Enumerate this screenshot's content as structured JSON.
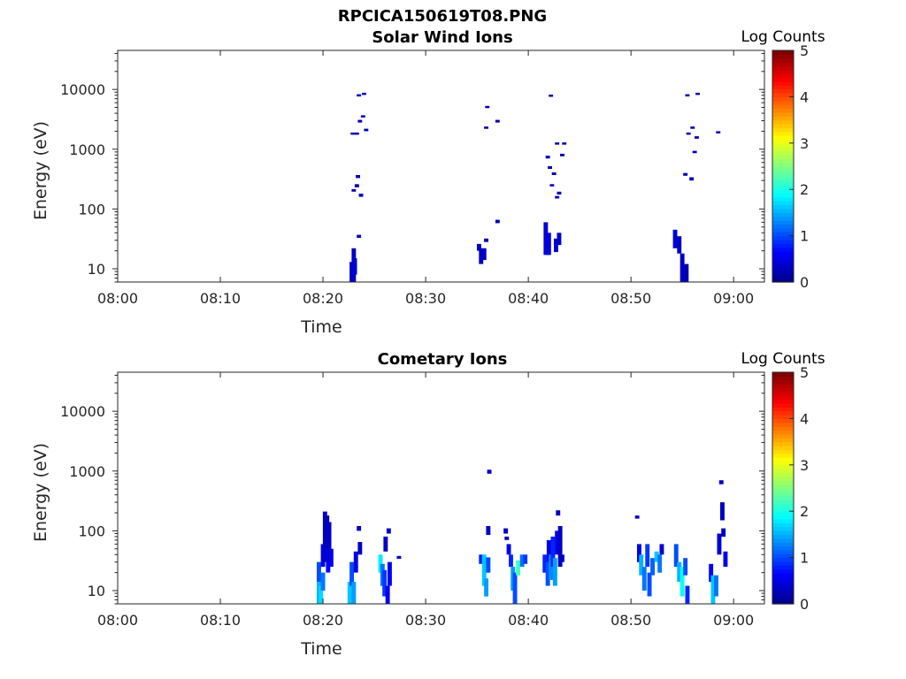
{
  "figure_title": "RPCICA150619T08.PNG",
  "colormap": [
    "#00008f",
    "#0000ff",
    "#0080ff",
    "#00ffff",
    "#80ff80",
    "#ffff00",
    "#ff8000",
    "#ff0000",
    "#800000"
  ],
  "chart_data": [
    {
      "type": "heatmap",
      "title": "Solar Wind Ions",
      "xlabel": "Time",
      "ylabel": "Energy (eV)",
      "x_unit": "minutes after 08:00",
      "xlim": [
        0,
        63
      ],
      "ylim": [
        6,
        45000
      ],
      "y_scale": "log",
      "x_ticks": [
        0,
        10,
        20,
        30,
        40,
        50,
        60
      ],
      "x_tick_labels": [
        "08:00",
        "08:10",
        "08:20",
        "08:30",
        "08:40",
        "08:50",
        "09:00"
      ],
      "y_ticks": [
        10,
        100,
        1000,
        10000
      ],
      "y_tick_labels": [
        "10",
        "100",
        "1000",
        "10000"
      ],
      "colorbar": {
        "label": "Log Counts",
        "range": [
          0,
          5
        ],
        "ticks": [
          "0",
          "1",
          "2",
          "3",
          "4",
          "5"
        ]
      },
      "cells_format": "[minute, energy_low_eV, energy_high_eV, log_counts]",
      "cells": [
        [
          22.8,
          6,
          13,
          0.3
        ],
        [
          23.0,
          6,
          22,
          0.3
        ],
        [
          23.1,
          8,
          15,
          0.4
        ],
        [
          23.5,
          33,
          37,
          0.2
        ],
        [
          23.0,
          195,
          215,
          0.2
        ],
        [
          23.3,
          230,
          260,
          0.2
        ],
        [
          23.4,
          330,
          370,
          0.2
        ],
        [
          23.7,
          160,
          180,
          0.2
        ],
        [
          22.9,
          1750,
          1900,
          0.2
        ],
        [
          23.3,
          1750,
          1900,
          0.2
        ],
        [
          23.6,
          2800,
          3100,
          0.2
        ],
        [
          23.9,
          3400,
          3700,
          0.2
        ],
        [
          24.2,
          2000,
          2200,
          0.2
        ],
        [
          23.5,
          7700,
          8300,
          0.2
        ],
        [
          24.0,
          8200,
          8800,
          0.2
        ],
        [
          35.2,
          20,
          26,
          0.3
        ],
        [
          35.4,
          12,
          22,
          0.3
        ],
        [
          35.7,
          14,
          22,
          0.3
        ],
        [
          35.9,
          28,
          32,
          0.2
        ],
        [
          37.0,
          58,
          66,
          0.2
        ],
        [
          35.9,
          2200,
          2400,
          0.2
        ],
        [
          36.0,
          4900,
          5300,
          0.2
        ],
        [
          37.0,
          2800,
          3100,
          0.2
        ],
        [
          41.7,
          17,
          60,
          0.4
        ],
        [
          42.0,
          17,
          40,
          0.4
        ],
        [
          42.7,
          19,
          32,
          0.4
        ],
        [
          43.0,
          25,
          40,
          0.3
        ],
        [
          41.9,
          700,
          780,
          0.2
        ],
        [
          42.1,
          470,
          520,
          0.2
        ],
        [
          42.2,
          7600,
          8200,
          0.2
        ],
        [
          42.3,
          240,
          260,
          0.2
        ],
        [
          42.5,
          370,
          410,
          0.2
        ],
        [
          42.8,
          150,
          165,
          0.2
        ],
        [
          42.8,
          1200,
          1300,
          0.2
        ],
        [
          43.0,
          175,
          195,
          0.2
        ],
        [
          43.3,
          760,
          840,
          0.2
        ],
        [
          43.5,
          1200,
          1300,
          0.2
        ],
        [
          54.3,
          22,
          45,
          0.4
        ],
        [
          54.7,
          18,
          35,
          0.3
        ],
        [
          55.0,
          6,
          18,
          0.3
        ],
        [
          55.4,
          6,
          12,
          0.2
        ],
        [
          55.3,
          360,
          400,
          0.2
        ],
        [
          55.5,
          7700,
          8300,
          0.2
        ],
        [
          55.6,
          1750,
          1900,
          0.2
        ],
        [
          55.9,
          300,
          340,
          0.2
        ],
        [
          56.0,
          2200,
          2400,
          0.2
        ],
        [
          56.2,
          860,
          940,
          0.2
        ],
        [
          56.4,
          1500,
          1650,
          0.2
        ],
        [
          56.5,
          8200,
          8800,
          0.2
        ],
        [
          58.5,
          1850,
          2000,
          0.2
        ]
      ]
    },
    {
      "type": "heatmap",
      "title": "Cometary Ions",
      "xlabel": "Time",
      "ylabel": "Energy (eV)",
      "x_unit": "minutes after 08:00",
      "xlim": [
        0,
        63
      ],
      "ylim": [
        6,
        45000
      ],
      "y_scale": "log",
      "x_ticks": [
        0,
        10,
        20,
        30,
        40,
        50,
        60
      ],
      "x_tick_labels": [
        "08:00",
        "08:10",
        "08:20",
        "08:30",
        "08:40",
        "08:50",
        "09:00"
      ],
      "y_ticks": [
        10,
        100,
        1000,
        10000
      ],
      "y_tick_labels": [
        "10",
        "100",
        "1000",
        "10000"
      ],
      "colorbar": {
        "label": "Log Counts",
        "range": [
          0,
          5
        ],
        "ticks": [
          "0",
          "1",
          "2",
          "3",
          "4",
          "5"
        ]
      },
      "cells_format": "[minute, energy_low_eV, energy_high_eV, log_counts]",
      "cells": [
        [
          19.6,
          6,
          14,
          1.5
        ],
        [
          19.6,
          14,
          30,
          1.0
        ],
        [
          19.8,
          6,
          12,
          1.7
        ],
        [
          20.0,
          10,
          20,
          1.2
        ],
        [
          20.0,
          25,
          60,
          0.5
        ],
        [
          20.2,
          30,
          210,
          0.3
        ],
        [
          20.4,
          50,
          180,
          0.2
        ],
        [
          20.5,
          20,
          50,
          0.6
        ],
        [
          20.6,
          30,
          140,
          0.3
        ],
        [
          20.8,
          25,
          50,
          0.5
        ],
        [
          22.6,
          6,
          14,
          1.6
        ],
        [
          22.8,
          12,
          30,
          1.0
        ],
        [
          23.0,
          6,
          14,
          1.4
        ],
        [
          23.2,
          20,
          45,
          0.5
        ],
        [
          23.5,
          100,
          120,
          0.3
        ],
        [
          23.6,
          40,
          65,
          0.3
        ],
        [
          25.6,
          20,
          40,
          1.8
        ],
        [
          25.8,
          12,
          28,
          1.2
        ],
        [
          26.0,
          8,
          22,
          0.9
        ],
        [
          26.1,
          45,
          80,
          0.3
        ],
        [
          26.3,
          6,
          12,
          0.5
        ],
        [
          26.4,
          90,
          110,
          0.3
        ],
        [
          26.5,
          12,
          30,
          0.6
        ],
        [
          27.4,
          34,
          38,
          0.3
        ],
        [
          35.4,
          28,
          40,
          0.8
        ],
        [
          35.7,
          12,
          40,
          1.6
        ],
        [
          35.9,
          8,
          16,
          1.4
        ],
        [
          36.1,
          20,
          36,
          1.0
        ],
        [
          36.2,
          900,
          1050,
          0.3
        ],
        [
          36.1,
          85,
          120,
          0.3
        ],
        [
          37.8,
          90,
          110,
          0.3
        ],
        [
          37.9,
          70,
          80,
          0.3
        ],
        [
          38.1,
          40,
          60,
          0.5
        ],
        [
          38.3,
          25,
          40,
          0.8
        ],
        [
          38.5,
          10,
          25,
          1.4
        ],
        [
          38.7,
          6,
          20,
          1.0
        ],
        [
          39.0,
          18,
          32,
          2.2
        ],
        [
          39.4,
          25,
          40,
          1.2
        ],
        [
          39.7,
          28,
          40,
          0.9
        ],
        [
          41.6,
          20,
          40,
          0.8
        ],
        [
          41.9,
          12,
          30,
          1.0
        ],
        [
          42.0,
          30,
          70,
          0.5
        ],
        [
          42.2,
          15,
          40,
          1.3
        ],
        [
          42.4,
          25,
          80,
          0.8
        ],
        [
          42.6,
          12,
          35,
          1.4
        ],
        [
          42.8,
          40,
          100,
          0.5
        ],
        [
          42.9,
          180,
          220,
          0.3
        ],
        [
          43.1,
          25,
          120,
          0.3
        ],
        [
          43.3,
          30,
          40,
          0.3
        ],
        [
          50.6,
          160,
          180,
          0.3
        ],
        [
          50.8,
          30,
          60,
          0.5
        ],
        [
          51.0,
          18,
          40,
          1.5
        ],
        [
          51.3,
          10,
          25,
          1.2
        ],
        [
          51.6,
          25,
          60,
          0.9
        ],
        [
          51.8,
          8,
          20,
          1.0
        ],
        [
          52.1,
          18,
          35,
          1.1
        ],
        [
          52.5,
          30,
          45,
          1.6
        ],
        [
          52.8,
          20,
          40,
          1.2
        ],
        [
          53.0,
          40,
          60,
          0.4
        ],
        [
          54.4,
          25,
          60,
          1.0
        ],
        [
          54.7,
          14,
          30,
          1.5
        ],
        [
          55.0,
          8,
          25,
          1.9
        ],
        [
          55.3,
          18,
          35,
          1.0
        ],
        [
          55.5,
          6,
          12,
          0.8
        ],
        [
          57.8,
          14,
          28,
          0.6
        ],
        [
          58.0,
          6,
          18,
          1.6
        ],
        [
          58.3,
          8,
          18,
          1.2
        ],
        [
          58.6,
          40,
          90,
          0.4
        ],
        [
          58.8,
          600,
          700,
          0.3
        ],
        [
          58.9,
          150,
          300,
          0.3
        ],
        [
          59.0,
          80,
          110,
          0.3
        ],
        [
          59.2,
          25,
          45,
          0.5
        ]
      ]
    }
  ]
}
